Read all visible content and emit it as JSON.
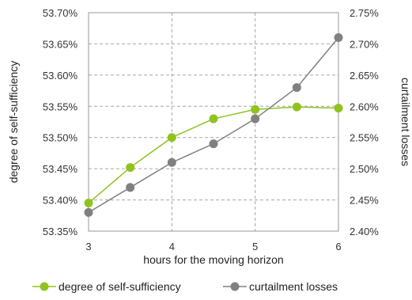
{
  "chart_data": {
    "type": "line",
    "x": [
      3,
      3.5,
      4,
      4.5,
      5,
      5.5,
      6
    ],
    "xlabel": "hours for the moving horizon",
    "xlim": [
      3,
      6
    ],
    "xticks": [
      "3",
      "4",
      "5",
      "6"
    ],
    "ylabel_left": "degree of self-sufficiency",
    "ylim_left": [
      53.35,
      53.7
    ],
    "yticks_left": [
      "53.35%",
      "53.40%",
      "53.45%",
      "53.50%",
      "53.55%",
      "53.60%",
      "53.65%",
      "53.70%"
    ],
    "ylabel_right": "curtailment losses",
    "ylim_right": [
      2.4,
      2.75
    ],
    "yticks_right": [
      "2.40%",
      "2.45%",
      "2.50%",
      "2.55%",
      "2.60%",
      "2.65%",
      "2.70%",
      "2.75%"
    ],
    "grid": "dashed",
    "legend_position": "bottom",
    "series": [
      {
        "name": "degree of self-sufficiency",
        "axis": "left",
        "color": "#8fc31f",
        "values": [
          53.395,
          53.452,
          53.5,
          53.53,
          53.545,
          53.549,
          53.547
        ]
      },
      {
        "name": "curtailment losses",
        "axis": "right",
        "color": "#808080",
        "values": [
          2.43,
          2.47,
          2.51,
          2.54,
          2.58,
          2.63,
          2.71
        ]
      }
    ]
  }
}
